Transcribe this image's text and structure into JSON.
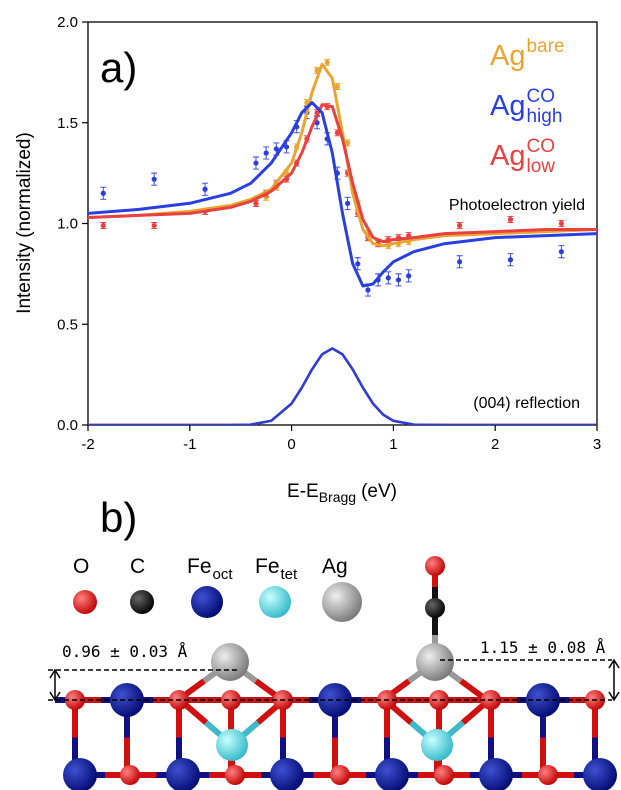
{
  "chart_data": {
    "type": "line",
    "panel_label": "a)",
    "x_label": {
      "text": "E-E",
      "subscript": "Bragg",
      "unit": "(eV)"
    },
    "y_label": "Intensity (normalized)",
    "xlim": [
      -2,
      3
    ],
    "xticks": [
      -2,
      -1,
      0,
      1,
      2,
      3
    ],
    "ylim": [
      0,
      2
    ],
    "yticks": [
      {
        "value": 0,
        "label": "0.0"
      },
      0.5,
      {
        "value": 1,
        "label": "1.0"
      },
      1.5,
      {
        "value": 2,
        "label": "2.0"
      }
    ],
    "annotations": [
      "Photoelectron yield",
      "(004) reflection"
    ],
    "x": [
      -2,
      -1.5,
      -1,
      -0.6,
      -0.4,
      -0.2,
      0,
      0.1,
      0.2,
      0.3,
      0.4,
      0.5,
      0.6,
      0.7,
      0.8,
      0.9,
      1,
      1.2,
      1.5,
      2,
      2.5,
      3
    ],
    "point_x": [
      -1.85,
      -1.35,
      -0.85,
      -0.35,
      -0.25,
      -0.15,
      -0.05,
      0.05,
      0.15,
      0.25,
      0.35,
      0.45,
      0.55,
      0.65,
      0.75,
      0.85,
      0.95,
      1.05,
      1.15,
      1.65,
      2.15,
      2.65
    ],
    "series": [
      {
        "name": "Ag",
        "superscript": "bare",
        "color": "#e8a630",
        "values": [
          1.03,
          1.04,
          1.06,
          1.09,
          1.12,
          1.17,
          1.3,
          1.45,
          1.65,
          1.79,
          1.72,
          1.45,
          1.15,
          0.97,
          0.9,
          0.89,
          0.9,
          0.92,
          0.94,
          0.95,
          0.96,
          0.97
        ],
        "reflection": [
          0,
          0,
          0,
          0,
          0.002,
          0.021,
          0.106,
          0.185,
          0.276,
          0.351,
          0.38,
          0.351,
          0.276,
          0.185,
          0.106,
          0.051,
          0.021,
          0.002,
          0,
          0,
          0,
          0
        ],
        "points": [
          null,
          null,
          null,
          1.1,
          1.13,
          1.18,
          1.25,
          1.38,
          1.6,
          1.76,
          1.8,
          1.68,
          1.4,
          1.1,
          0.95,
          0.9,
          0.89,
          0.9,
          0.91,
          null,
          null,
          null
        ],
        "errors": [
          null,
          null,
          null,
          0.015,
          0.015,
          0.015,
          0.015,
          0.015,
          0.015,
          0.015,
          0.015,
          0.015,
          0.015,
          0.015,
          0.015,
          0.015,
          0.015,
          0.015,
          0.015,
          null,
          null,
          null
        ]
      },
      {
        "name": "Ag",
        "superscript": "CO",
        "subscript": "low",
        "color": "#e8413f",
        "values": [
          1.03,
          1.04,
          1.05,
          1.08,
          1.11,
          1.16,
          1.25,
          1.35,
          1.48,
          1.59,
          1.58,
          1.42,
          1.2,
          1.02,
          0.93,
          0.91,
          0.92,
          0.93,
          0.95,
          0.96,
          0.97,
          0.97
        ],
        "reflection": [
          0,
          0,
          0,
          0,
          0.002,
          0.021,
          0.106,
          0.185,
          0.276,
          0.351,
          0.38,
          0.351,
          0.276,
          0.185,
          0.106,
          0.051,
          0.021,
          0.002,
          0,
          0,
          0,
          0
        ],
        "points": [
          0.99,
          0.99,
          1.06,
          1.1,
          1.15,
          1.2,
          1.22,
          1.3,
          1.42,
          1.55,
          1.58,
          1.45,
          1.25,
          1.05,
          0.93,
          0.9,
          0.92,
          0.93,
          0.94,
          0.99,
          1.02,
          1.0
        ],
        "errors": [
          0.015,
          0.015,
          0.015,
          0.015,
          0.015,
          0.015,
          0.015,
          0.015,
          0.015,
          0.015,
          0.015,
          0.015,
          0.015,
          0.015,
          0.015,
          0.015,
          0.015,
          0.015,
          0.015,
          0.015,
          0.015,
          0.015
        ]
      },
      {
        "name": "Ag",
        "superscript": "CO",
        "subscript": "high",
        "color": "#2a3fe0",
        "values": [
          1.05,
          1.07,
          1.1,
          1.15,
          1.2,
          1.3,
          1.45,
          1.55,
          1.6,
          1.55,
          1.35,
          1.05,
          0.8,
          0.69,
          0.7,
          0.76,
          0.81,
          0.86,
          0.9,
          0.93,
          0.94,
          0.95
        ],
        "reflection": [
          0,
          0,
          0,
          0,
          0.002,
          0.021,
          0.106,
          0.185,
          0.276,
          0.351,
          0.38,
          0.351,
          0.276,
          0.185,
          0.106,
          0.051,
          0.021,
          0.002,
          0,
          0,
          0,
          0
        ],
        "points": [
          1.15,
          1.22,
          1.17,
          1.3,
          1.35,
          1.37,
          1.38,
          1.48,
          1.55,
          1.5,
          1.42,
          1.25,
          1.1,
          0.8,
          0.67,
          0.72,
          0.73,
          0.72,
          0.74,
          0.81,
          0.82,
          0.86
        ],
        "errors": [
          0.03,
          0.03,
          0.03,
          0.03,
          0.03,
          0.03,
          0.03,
          0.03,
          0.03,
          0.03,
          0.03,
          0.03,
          0.03,
          0.03,
          0.03,
          0.03,
          0.03,
          0.03,
          0.03,
          0.03,
          0.03,
          0.03
        ]
      }
    ],
    "legend_order": [
      0,
      2,
      1
    ]
  },
  "diagram": {
    "panel_label": "b)",
    "atoms": [
      {
        "label": "O"
      },
      {
        "label": "C"
      },
      {
        "label": "Fe",
        "subscript": "oct"
      },
      {
        "label": "Fe",
        "subscript": "tet"
      },
      {
        "label": "Ag"
      }
    ],
    "distances": [
      "0.96 ± 0.03 Å",
      "1.15 ± 0.08 Å"
    ]
  }
}
